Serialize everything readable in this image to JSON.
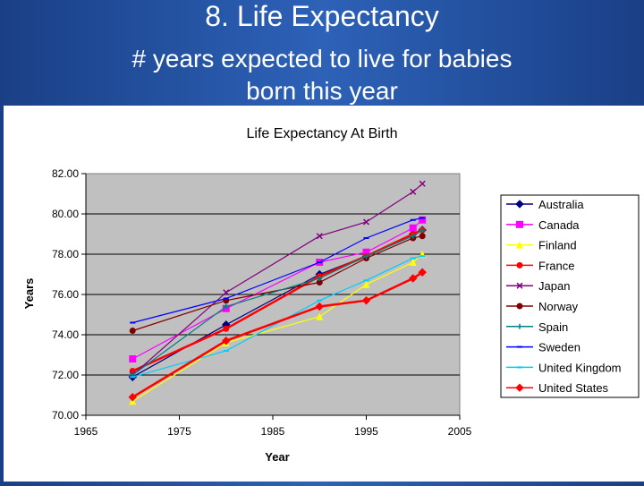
{
  "slide": {
    "title": "8. Life Expectancy",
    "subtitle_line1": "# years expected to live for babies",
    "subtitle_line2": "born this year"
  },
  "chart_data": {
    "type": "line",
    "title": "Life Expectancy At Birth",
    "xlabel": "Year",
    "ylabel": "Years",
    "xlim": [
      1965,
      2005
    ],
    "ylim": [
      70,
      82
    ],
    "xticks": [
      "1965",
      "1975",
      "1985",
      "1995",
      "2005"
    ],
    "yticks": [
      "70.00",
      "72.00",
      "74.00",
      "76.00",
      "78.00",
      "80.00",
      "82.00"
    ],
    "grid": "horizontal",
    "legend_position": "right",
    "plot_background": "#c0c0c0",
    "series": [
      {
        "name": "Australia",
        "color": "#000080",
        "marker": "diamond",
        "x": [
          1970,
          1980,
          1990,
          1995,
          2000,
          2001
        ],
        "values": [
          71.9,
          74.5,
          77.0,
          77.9,
          79.0,
          79.2
        ]
      },
      {
        "name": "Canada",
        "color": "#ff00ff",
        "marker": "square",
        "x": [
          1970,
          1980,
          1990,
          1995,
          2000,
          2001
        ],
        "values": [
          72.8,
          75.3,
          77.6,
          78.1,
          79.3,
          79.7
        ]
      },
      {
        "name": "Finland",
        "color": "#ffff00",
        "marker": "triangle",
        "x": [
          1970,
          1980,
          1990,
          1995,
          2000,
          2001
        ],
        "values": [
          70.7,
          73.6,
          74.9,
          76.5,
          77.6,
          78.0
        ]
      },
      {
        "name": "France",
        "color": "#ff0000",
        "marker": "circle",
        "x": [
          1970,
          1980,
          1990,
          1995,
          2000,
          2001
        ],
        "values": [
          72.2,
          74.3,
          76.9,
          77.9,
          79.0,
          79.2
        ]
      },
      {
        "name": "Japan",
        "color": "#800080",
        "marker": "x",
        "x": [
          1970,
          1980,
          1990,
          1995,
          2000,
          2001
        ],
        "values": [
          72.0,
          76.1,
          78.9,
          79.6,
          81.1,
          81.5
        ]
      },
      {
        "name": "Norway",
        "color": "#800000",
        "marker": "circle",
        "x": [
          1970,
          1980,
          1990,
          1995,
          2000,
          2001
        ],
        "values": [
          74.2,
          75.7,
          76.6,
          77.8,
          78.8,
          78.9
        ]
      },
      {
        "name": "Spain",
        "color": "#008080",
        "marker": "plus",
        "x": [
          1970,
          1980,
          1990,
          1995,
          2000,
          2001
        ],
        "values": [
          72.0,
          75.4,
          76.8,
          77.9,
          78.9,
          79.2
        ]
      },
      {
        "name": "Sweden",
        "color": "#0000ff",
        "marker": "dash",
        "x": [
          1970,
          1980,
          1990,
          1995,
          2000,
          2001
        ],
        "values": [
          74.6,
          75.8,
          77.6,
          78.8,
          79.7,
          79.8
        ]
      },
      {
        "name": "United Kingdom",
        "color": "#00ccff",
        "marker": "dash",
        "x": [
          1970,
          1980,
          1990,
          1995,
          2000,
          2001
        ],
        "values": [
          71.9,
          73.2,
          75.7,
          76.7,
          77.8,
          77.9
        ]
      },
      {
        "name": "United States",
        "color": "#ff0000",
        "marker": "diamond",
        "x": [
          1970,
          1980,
          1990,
          1995,
          2000,
          2001
        ],
        "values": [
          70.9,
          73.7,
          75.4,
          75.7,
          76.8,
          77.1
        ]
      }
    ]
  }
}
